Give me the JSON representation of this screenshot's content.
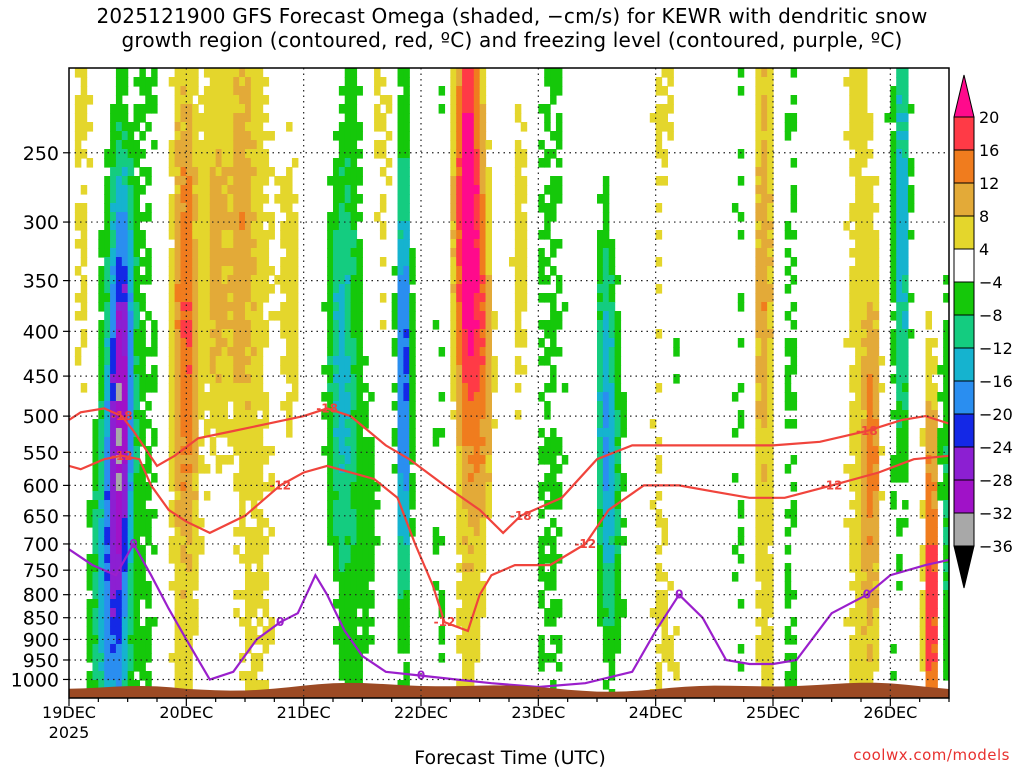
{
  "title": {
    "line1": "2025121900 GFS Forecast Omega (shaded, −cm/s) for KEWR with dendritic snow",
    "line2": "growth region (contoured, red, ºC) and freezing level (contoured, purple, ºC)"
  },
  "credit": "coolwx.com/models",
  "chart_data": {
    "type": "heatmap",
    "title": "2025121900 GFS Forecast Omega (shaded, −cm/s) for KEWR with dendritic snow growth region (contoured, red, ºC) and freezing level (contoured, purple, ºC)",
    "xlabel": "Forecast Time (UTC)",
    "ylabel": "",
    "y_scale": "log-pressure",
    "xlim": [
      "2025-12-19 00Z",
      "2025-12-26 12Z"
    ],
    "ylim": [
      1050,
      200
    ],
    "grid": true,
    "x_ticks": [
      {
        "label": "19DEC",
        "sub": "2025",
        "day": 0
      },
      {
        "label": "20DEC",
        "day": 1
      },
      {
        "label": "21DEC",
        "day": 2
      },
      {
        "label": "22DEC",
        "day": 3
      },
      {
        "label": "23DEC",
        "day": 4
      },
      {
        "label": "24DEC",
        "day": 5
      },
      {
        "label": "25DEC",
        "day": 6
      },
      {
        "label": "26DEC",
        "day": 7
      }
    ],
    "y_ticks": [
      250,
      300,
      350,
      400,
      450,
      500,
      550,
      600,
      650,
      700,
      750,
      800,
      850,
      900,
      950,
      1000
    ],
    "colorbar": {
      "levels": [
        20,
        16,
        12,
        8,
        4,
        -4,
        -8,
        -12,
        -16,
        -20,
        -24,
        -28,
        -32,
        -36
      ],
      "colors": [
        "#ff0a8c",
        "#ff3a46",
        "#f07c1e",
        "#e3aa38",
        "#e4d62c",
        "#ffffff",
        "#15c80a",
        "#14cc80",
        "#15b3cf",
        "#2a8ef0",
        "#1428e6",
        "#8c1fd2",
        "#a012c8",
        "#a8a8a8",
        "#000000"
      ]
    },
    "omega_features": [
      {
        "day": 0.45,
        "center": 430,
        "width": 0.1,
        "value": -26
      },
      {
        "day": 0.4,
        "center": 750,
        "width": 0.12,
        "value": -16
      },
      {
        "day": 0.2,
        "center": 850,
        "width": 0.2,
        "value": -8
      },
      {
        "day": 1.0,
        "center": 400,
        "width": 0.1,
        "value": 12
      },
      {
        "day": 1.25,
        "center": 330,
        "width": 0.1,
        "value": 10
      },
      {
        "day": 1.45,
        "center": 300,
        "width": 0.12,
        "value": 8
      },
      {
        "day": 1.9,
        "center": 350,
        "width": 0.1,
        "value": 8
      },
      {
        "day": 2.3,
        "center": 450,
        "width": 0.12,
        "value": -12
      },
      {
        "day": 2.85,
        "center": 450,
        "width": 0.06,
        "value": -22
      },
      {
        "day": 2.6,
        "center": 650,
        "width": 0.1,
        "value": -8
      },
      {
        "day": 3.4,
        "center": 300,
        "width": 0.12,
        "value": 20
      },
      {
        "day": 3.55,
        "center": 450,
        "width": 0.1,
        "value": 12
      },
      {
        "day": 3.85,
        "center": 330,
        "width": 0.1,
        "value": 6
      },
      {
        "day": 4.6,
        "center": 600,
        "width": 0.1,
        "value": -14
      },
      {
        "day": 4.55,
        "center": 420,
        "width": 0.08,
        "value": -8
      },
      {
        "day": 5.15,
        "center": 450,
        "width": 0.08,
        "value": -8
      },
      {
        "day": 5.9,
        "center": 350,
        "width": 0.08,
        "value": 6
      },
      {
        "day": 6.85,
        "center": 550,
        "width": 0.08,
        "value": 12
      },
      {
        "day": 7.1,
        "center": 300,
        "width": 0.06,
        "value": -14
      },
      {
        "day": 7.35,
        "center": 820,
        "width": 0.06,
        "value": 20
      },
      {
        "day": 7.45,
        "center": 650,
        "width": 0.05,
        "value": -8
      }
    ],
    "contours": [
      {
        "name": "-18",
        "color": "#f0443c",
        "labels": [
          "-18",
          "-18",
          "-18",
          "-18"
        ],
        "points": [
          [
            0,
            505
          ],
          [
            0.1,
            495
          ],
          [
            0.3,
            490
          ],
          [
            0.45,
            500
          ],
          [
            0.55,
            520
          ],
          [
            0.75,
            570
          ],
          [
            0.9,
            555
          ],
          [
            1.1,
            530
          ],
          [
            1.4,
            520
          ],
          [
            1.7,
            510
          ],
          [
            2.0,
            500
          ],
          [
            2.2,
            490
          ],
          [
            2.4,
            500
          ],
          [
            2.7,
            540
          ],
          [
            2.9,
            560
          ],
          [
            3.2,
            600
          ],
          [
            3.5,
            640
          ],
          [
            3.7,
            680
          ],
          [
            3.85,
            650
          ],
          [
            4.2,
            620
          ],
          [
            4.5,
            560
          ],
          [
            4.8,
            540
          ],
          [
            5.1,
            540
          ],
          [
            5.5,
            540
          ],
          [
            6.0,
            540
          ],
          [
            6.4,
            535
          ],
          [
            6.8,
            520
          ],
          [
            7.1,
            505
          ],
          [
            7.3,
            500
          ],
          [
            7.5,
            510
          ]
        ]
      },
      {
        "name": "-12",
        "color": "#f0443c",
        "labels": [
          "-12",
          "-12",
          "-12",
          "-12",
          "-12"
        ],
        "points": [
          [
            0,
            570
          ],
          [
            0.1,
            575
          ],
          [
            0.3,
            560
          ],
          [
            0.45,
            555
          ],
          [
            0.6,
            560
          ],
          [
            0.7,
            600
          ],
          [
            0.85,
            640
          ],
          [
            1.0,
            660
          ],
          [
            1.2,
            680
          ],
          [
            1.5,
            650
          ],
          [
            1.8,
            600
          ],
          [
            2.0,
            580
          ],
          [
            2.2,
            570
          ],
          [
            2.6,
            590
          ],
          [
            2.8,
            620
          ],
          [
            2.95,
            700
          ],
          [
            3.1,
            780
          ],
          [
            3.2,
            860
          ],
          [
            3.4,
            880
          ],
          [
            3.5,
            800
          ],
          [
            3.6,
            760
          ],
          [
            3.8,
            740
          ],
          [
            4.1,
            740
          ],
          [
            4.4,
            700
          ],
          [
            4.6,
            640
          ],
          [
            4.9,
            600
          ],
          [
            5.2,
            600
          ],
          [
            5.5,
            610
          ],
          [
            5.8,
            620
          ],
          [
            6.1,
            620
          ],
          [
            6.5,
            600
          ],
          [
            6.9,
            580
          ],
          [
            7.2,
            560
          ],
          [
            7.5,
            555
          ]
        ]
      },
      {
        "name": "0",
        "color": "#9b1fcc",
        "labels": [
          "0",
          "0",
          "0",
          "0",
          "0"
        ],
        "points": [
          [
            0,
            710
          ],
          [
            0.2,
            740
          ],
          [
            0.4,
            760
          ],
          [
            0.55,
            700
          ],
          [
            0.7,
            760
          ],
          [
            0.85,
            830
          ],
          [
            1.0,
            900
          ],
          [
            1.2,
            1000
          ],
          [
            1.4,
            980
          ],
          [
            1.6,
            900
          ],
          [
            1.8,
            860
          ],
          [
            1.95,
            840
          ],
          [
            2.1,
            760
          ],
          [
            2.2,
            800
          ],
          [
            2.35,
            880
          ],
          [
            2.5,
            940
          ],
          [
            2.7,
            980
          ],
          [
            3.0,
            990
          ],
          [
            3.3,
            1000
          ],
          [
            3.6,
            1010
          ],
          [
            4.0,
            1020
          ],
          [
            4.4,
            1010
          ],
          [
            4.8,
            980
          ],
          [
            5.0,
            880
          ],
          [
            5.2,
            800
          ],
          [
            5.4,
            850
          ],
          [
            5.6,
            950
          ],
          [
            5.8,
            960
          ],
          [
            6.0,
            960
          ],
          [
            6.2,
            950
          ],
          [
            6.5,
            840
          ],
          [
            6.8,
            800
          ],
          [
            7.0,
            760
          ],
          [
            7.3,
            740
          ],
          [
            7.5,
            730
          ]
        ]
      }
    ],
    "terrain_pressure": 1020
  }
}
